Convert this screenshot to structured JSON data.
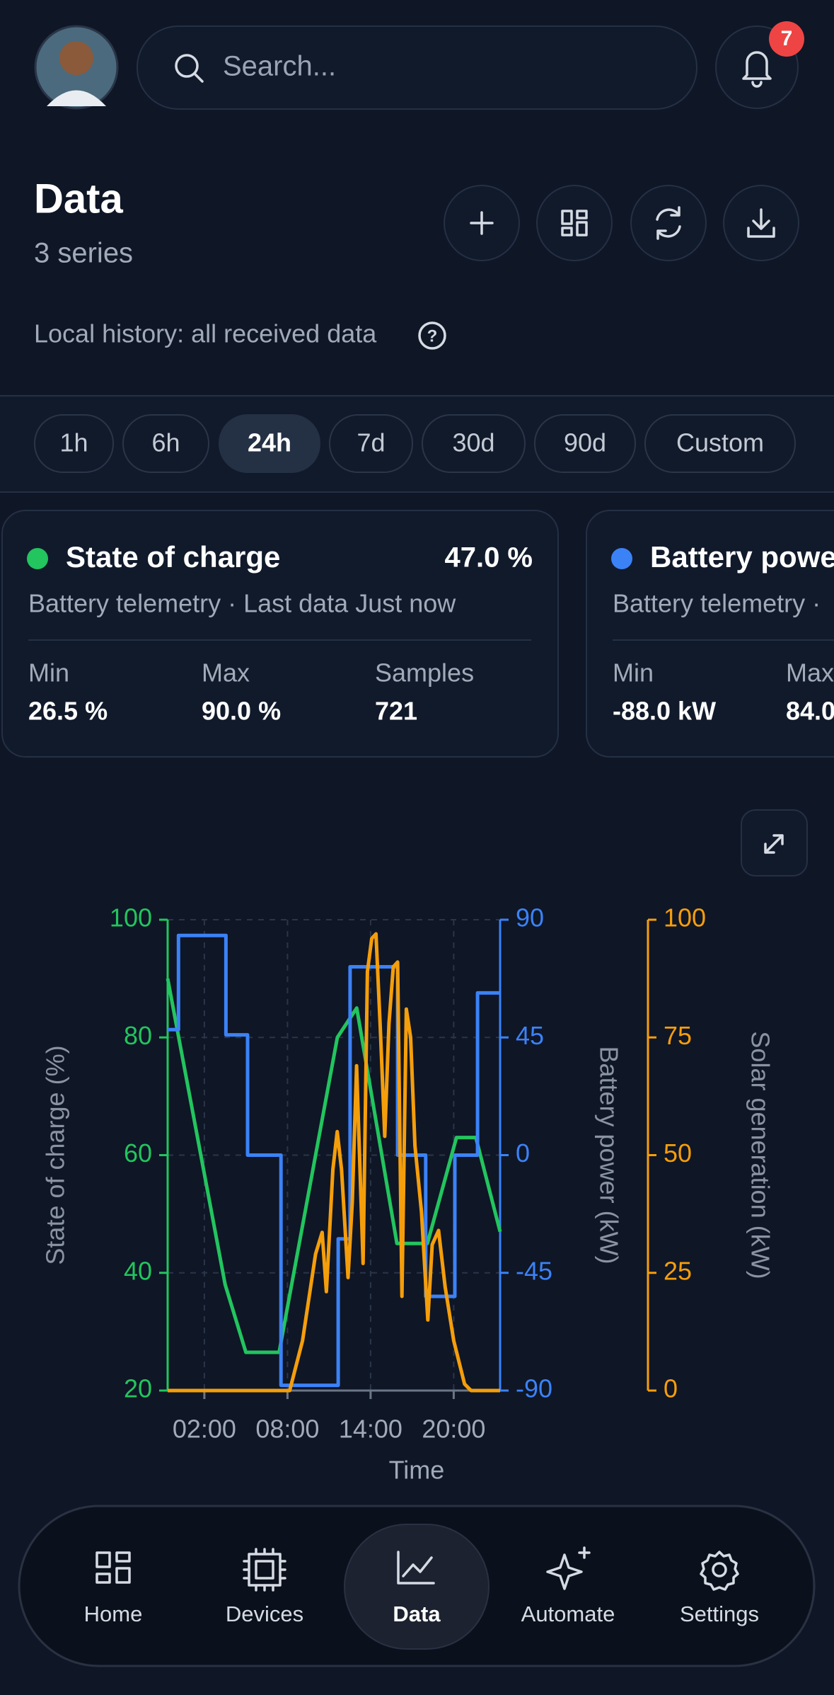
{
  "header": {
    "search_placeholder": "Search...",
    "notification_count": "7"
  },
  "page": {
    "title": "Data",
    "subtitle": "3 series",
    "history_note": "Local history: all received data"
  },
  "time_ranges": [
    "1h",
    "6h",
    "24h",
    "7d",
    "30d",
    "90d",
    "Custom"
  ],
  "active_range_index": 2,
  "cards": [
    {
      "title": "State of charge",
      "value": "47.0 %",
      "subtitle": "Battery telemetry · Last data Just now",
      "color": "#22c55e",
      "stats": [
        {
          "label": "Min",
          "value": "26.5 %"
        },
        {
          "label": "Max",
          "value": "90.0 %"
        },
        {
          "label": "Samples",
          "value": "721"
        }
      ]
    },
    {
      "title": "Battery powe",
      "subtitle": "Battery telemetry ·",
      "color": "#3b82f6",
      "stats": [
        {
          "label": "Min",
          "value": "-88.0 kW"
        },
        {
          "label": "Max",
          "value": "84.0"
        }
      ]
    }
  ],
  "chart_data": {
    "type": "line",
    "xlabel": "Time",
    "ylabel": "State of charge (%)",
    "y2label": "Battery power (kW)",
    "y3label": "Solar generation (kW)",
    "xlim": [
      -0.65,
      23.35
    ],
    "xticks": [
      {
        "value": 2,
        "label": "02:00"
      },
      {
        "value": 8,
        "label": "08:00"
      },
      {
        "value": 14,
        "label": "14:00"
      },
      {
        "value": 20,
        "label": "20:00"
      }
    ],
    "ylim": [
      20,
      100
    ],
    "yticks": [
      20,
      40,
      60,
      80,
      100
    ],
    "y2lim": [
      -90,
      90
    ],
    "y2ticks": [
      -90,
      -45,
      0,
      45,
      90
    ],
    "y3lim": [
      0,
      100
    ],
    "y3ticks": [
      0,
      25,
      50,
      75,
      100
    ],
    "grid": true,
    "series": [
      {
        "color": "#22c55e",
        "axis": "y",
        "x": [
          -0.65,
          3.5,
          5.0,
          7.4,
          11.6,
          13.0,
          15.9,
          18.1,
          20.2,
          21.6,
          23.35
        ],
        "values": [
          90,
          38,
          26.5,
          26.5,
          80,
          85,
          45,
          45,
          63,
          63,
          47
        ]
      },
      {
        "color": "#3b82f6",
        "axis": "y2",
        "x": [
          -0.65,
          0.13,
          0.13,
          3.56,
          3.56,
          5.12,
          5.12,
          7.53,
          7.53,
          11.66,
          11.66,
          12.52,
          12.52,
          15.95,
          15.95,
          17.98,
          17.98,
          20.08,
          20.08,
          21.72,
          21.72,
          23.35
        ],
        "values": [
          48,
          48,
          84,
          84,
          46,
          46,
          0,
          0,
          -88,
          -88,
          -32,
          -32,
          72,
          72,
          0,
          0,
          -54,
          -54,
          0,
          0,
          62,
          62
        ]
      },
      {
        "color": "#f59e0b",
        "axis": "y3",
        "x": [
          -0.65,
          8.16,
          9.09,
          10.03,
          10.5,
          10.81,
          11.28,
          11.59,
          11.9,
          12.37,
          12.68,
          12.99,
          13.46,
          13.77,
          14.08,
          14.39,
          14.7,
          15.02,
          15.33,
          15.64,
          15.95,
          16.26,
          16.58,
          16.89,
          17.2,
          17.67,
          18.13,
          18.45,
          18.91,
          19.38,
          20.0,
          20.78,
          21.25,
          23.35
        ],
        "values": [
          0,
          0,
          10.6,
          29,
          33.6,
          21,
          47,
          55,
          47,
          24,
          40,
          69,
          27,
          89,
          96,
          97,
          77,
          54,
          78,
          90,
          91,
          20,
          81,
          75,
          52,
          38,
          15,
          31,
          34,
          22,
          10.6,
          1.4,
          0,
          0
        ]
      }
    ]
  },
  "nav": [
    "Home",
    "Devices",
    "Data",
    "Automate",
    "Settings"
  ],
  "active_nav_index": 2
}
